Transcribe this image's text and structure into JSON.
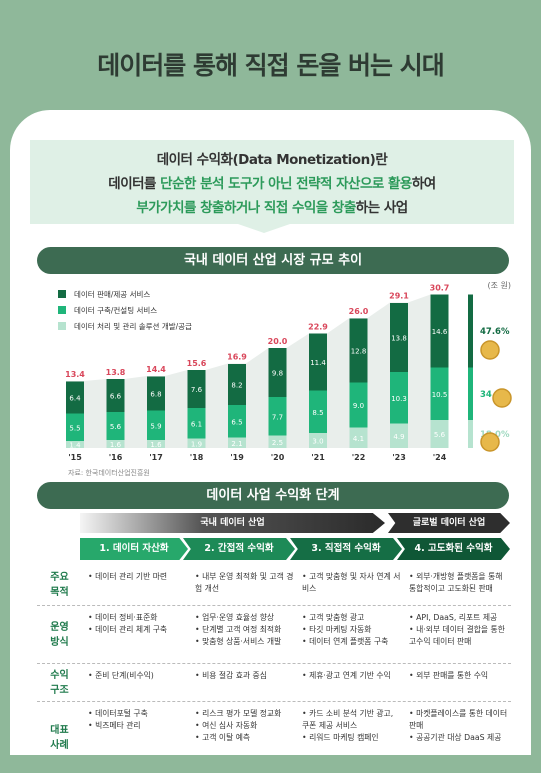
{
  "header": {
    "title": "데이터를 통해 직접 돈을 버는 시대"
  },
  "definition": {
    "line1": "데이터 수익화(Data Monetization)란",
    "line2a": "데이터를 ",
    "line2b": "단순한 분석 도구가 아닌 전략적 자산으로 활용",
    "line2c": "하여",
    "line3a": "부가가치를 창출하거나 직접 수익을 창출",
    "line3b": "하는 사업"
  },
  "chart_section": {
    "title": "국내 데이터 산업 시장 규모 추이",
    "unit": "(조 원)",
    "source": "자료: 한국데이터산업진흥원"
  },
  "chart_data": {
    "type": "bar",
    "stacked": true,
    "categories": [
      "'15",
      "'16",
      "'17",
      "'18",
      "'19",
      "'20",
      "'21",
      "'22",
      "'23",
      "'24"
    ],
    "series": [
      {
        "name": "데이터 처리 및 관리 솔루션 개발/공급",
        "color": "#b6e3cf",
        "values": [
          1.4,
          1.6,
          1.6,
          1.9,
          2.1,
          2.5,
          3.0,
          4.1,
          4.9,
          5.6
        ]
      },
      {
        "name": "데이터 구축/컨설팅 서비스",
        "color": "#1fb57a",
        "values": [
          5.5,
          5.6,
          5.9,
          6.1,
          6.5,
          7.7,
          8.5,
          9.0,
          10.3,
          10.5
        ]
      },
      {
        "name": "데이터 판매/제공 서비스",
        "color": "#136b43",
        "values": [
          6.4,
          6.6,
          6.8,
          7.6,
          8.2,
          9.8,
          11.4,
          12.8,
          13.8,
          14.6
        ]
      }
    ],
    "totals": [
      13.4,
      13.8,
      14.4,
      15.6,
      16.9,
      20.0,
      22.9,
      26.0,
      29.1,
      30.7
    ],
    "shares": [
      "47.6%",
      "34.4%",
      "18.0%"
    ],
    "ylim": [
      0,
      32
    ]
  },
  "stages_section": {
    "title": "데이터 사업 수익화 단계"
  },
  "bands": {
    "domestic": "국내 데이터 산업",
    "global": "글로벌 데이터 산업"
  },
  "stages": [
    "1. 데이터 자산화",
    "2. 간접적 수익화",
    "3. 직접적 수익화",
    "4. 고도화된 수익화"
  ],
  "rows": [
    {
      "label": "주요\n목적",
      "cells": [
        [
          "데이터 관리 기반 마련"
        ],
        [
          "내부 운영 최적화 및 고객 경험 개선"
        ],
        [
          "고객 맞춤형 및 자사 연계 서비스"
        ],
        [
          "외부·개방형 플랫폼을 통해 통합적이고 고도화된 판매"
        ]
      ]
    },
    {
      "label": "운영\n방식",
      "cells": [
        [
          "데이터 정비·표준화",
          "데이터 관리 체계 구축"
        ],
        [
          "업무·운영 효율성 향상",
          "단계별 고객 여정 최적화",
          "맞춤형 상품·서비스 개발"
        ],
        [
          "고객 맞춤형 광고",
          "타깃 마케팅 자동화",
          "데이터 연계 플랫폼 구축"
        ],
        [
          "API, DaaS, 리포트 제공",
          "내·외부 데이터 결합을 통한 고수익 데이터 판매"
        ]
      ]
    },
    {
      "label": "수익\n구조",
      "cells": [
        [
          "준비 단계(비수익)"
        ],
        [
          "비용 절감 효과 중심"
        ],
        [
          "제휴·광고 연계 기반 수익"
        ],
        [
          "외부 판매를 통한 수익"
        ]
      ]
    },
    {
      "label": "대표\n사례",
      "cells": [
        [
          "데이터포털 구축",
          "빅즈메타 관리"
        ],
        [
          "리스크 평가 모델 정교화",
          "여신 심사 자동화",
          "고객 이탈 예측"
        ],
        [
          "카드 소비 분석 기반 광고, 쿠폰 제공 서비스",
          "리워드 마케팅 캠페인"
        ],
        [
          "마켓플레이스를 통한 데이터 판매",
          "공공기관 대상 DaaS 제공"
        ]
      ]
    }
  ]
}
